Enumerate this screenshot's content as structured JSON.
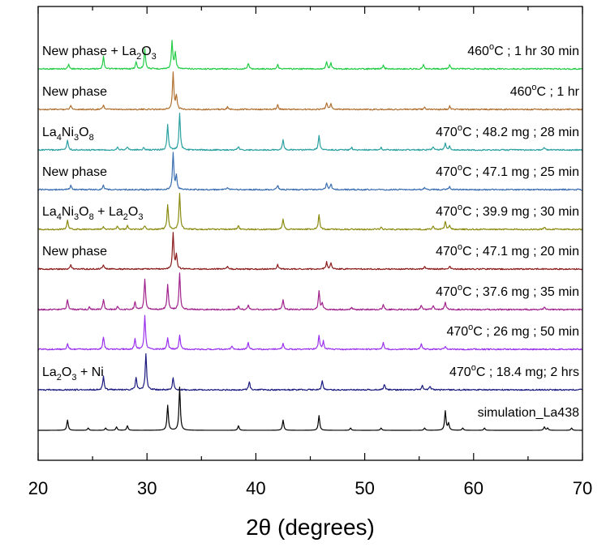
{
  "chart_data": {
    "type": "line",
    "xlabel": "2θ (degrees)",
    "xlim": [
      20,
      70
    ],
    "xticks": [
      "20",
      "30",
      "40",
      "50",
      "60",
      "70"
    ],
    "ylabel": "",
    "y_ticks_shown": false,
    "grid": false,
    "legend": "none",
    "series": [
      {
        "color": "#22cc44",
        "left_label_parts": [
          [
            "New phase + La",
            ""
          ],
          [
            "2",
            "sub"
          ],
          [
            "O",
            ""
          ],
          [
            "3",
            "sub"
          ]
        ],
        "right_label_parts": [
          [
            "460",
            ""
          ],
          [
            "o",
            "sup"
          ],
          [
            "C ; 1 hr 30 min",
            ""
          ]
        ],
        "peaks": [
          [
            22.8,
            0.2
          ],
          [
            26.0,
            0.55
          ],
          [
            29.0,
            0.3
          ],
          [
            29.8,
            0.9
          ],
          [
            32.3,
            1.2
          ],
          [
            32.6,
            0.7
          ],
          [
            39.3,
            0.25
          ],
          [
            42.0,
            0.2
          ],
          [
            46.5,
            0.3
          ],
          [
            46.9,
            0.25
          ],
          [
            51.7,
            0.15
          ],
          [
            55.4,
            0.2
          ],
          [
            57.8,
            0.2
          ]
        ]
      },
      {
        "color": "#b07030",
        "left_label_parts": [
          [
            "New phase",
            ""
          ]
        ],
        "right_label_parts": [
          [
            "460",
            ""
          ],
          [
            "o",
            "sup"
          ],
          [
            "C ; 1 hr",
            ""
          ]
        ],
        "peaks": [
          [
            23.0,
            0.2
          ],
          [
            26.0,
            0.2
          ],
          [
            32.4,
            1.6
          ],
          [
            32.7,
            0.6
          ],
          [
            37.4,
            0.1
          ],
          [
            42.0,
            0.2
          ],
          [
            46.5,
            0.3
          ],
          [
            46.9,
            0.25
          ],
          [
            55.5,
            0.1
          ],
          [
            57.8,
            0.15
          ]
        ]
      },
      {
        "color": "#2aa0a0",
        "left_label_parts": [
          [
            "La",
            ""
          ],
          [
            "4",
            "sub"
          ],
          [
            "Ni",
            ""
          ],
          [
            "3",
            "sub"
          ],
          [
            "O",
            ""
          ],
          [
            "8",
            "sub"
          ]
        ],
        "right_label_parts": [
          [
            "470",
            ""
          ],
          [
            "o",
            "sup"
          ],
          [
            "C ; 48.2 mg ; 28 min",
            ""
          ]
        ],
        "peaks": [
          [
            22.7,
            0.45
          ],
          [
            27.3,
            0.15
          ],
          [
            28.2,
            0.15
          ],
          [
            29.7,
            0.1
          ],
          [
            31.9,
            1.1
          ],
          [
            33.0,
            1.6
          ],
          [
            38.4,
            0.15
          ],
          [
            42.5,
            0.45
          ],
          [
            45.8,
            0.65
          ],
          [
            48.8,
            0.1
          ],
          [
            51.5,
            0.1
          ],
          [
            56.3,
            0.15
          ],
          [
            57.4,
            0.3
          ],
          [
            57.8,
            0.15
          ],
          [
            66.5,
            0.1
          ]
        ]
      },
      {
        "color": "#3a6eb0",
        "left_label_parts": [
          [
            "New phase",
            ""
          ]
        ],
        "right_label_parts": [
          [
            "470",
            ""
          ],
          [
            "o",
            "sup"
          ],
          [
            "C ; 47.1 mg ; 25 min",
            ""
          ]
        ],
        "peaks": [
          [
            23.0,
            0.2
          ],
          [
            26.0,
            0.2
          ],
          [
            32.4,
            1.6
          ],
          [
            32.7,
            0.6
          ],
          [
            37.4,
            0.1
          ],
          [
            42.0,
            0.2
          ],
          [
            46.5,
            0.3
          ],
          [
            46.9,
            0.25
          ],
          [
            55.5,
            0.1
          ],
          [
            57.8,
            0.15
          ]
        ]
      },
      {
        "color": "#8a8a10",
        "left_label_parts": [
          [
            "La",
            ""
          ],
          [
            "4",
            "sub"
          ],
          [
            "Ni",
            ""
          ],
          [
            "3",
            "sub"
          ],
          [
            "O",
            ""
          ],
          [
            "8",
            "sub"
          ],
          [
            " + La",
            ""
          ],
          [
            "2",
            "sub"
          ],
          [
            "O",
            ""
          ],
          [
            "3",
            "sub"
          ]
        ],
        "right_label_parts": [
          [
            "470",
            ""
          ],
          [
            "o",
            "sup"
          ],
          [
            "C ; 39.9 mg ; 30 min",
            ""
          ]
        ],
        "peaks": [
          [
            22.7,
            0.4
          ],
          [
            26.0,
            0.1
          ],
          [
            27.3,
            0.15
          ],
          [
            28.2,
            0.15
          ],
          [
            29.8,
            0.15
          ],
          [
            31.9,
            1.1
          ],
          [
            33.0,
            1.6
          ],
          [
            38.4,
            0.15
          ],
          [
            42.5,
            0.45
          ],
          [
            45.8,
            0.65
          ],
          [
            51.5,
            0.1
          ],
          [
            56.3,
            0.15
          ],
          [
            57.4,
            0.35
          ],
          [
            57.8,
            0.15
          ],
          [
            66.5,
            0.1
          ]
        ]
      },
      {
        "color": "#8b1a1a",
        "left_label_parts": [
          [
            "New phase",
            ""
          ]
        ],
        "right_label_parts": [
          [
            "470",
            ""
          ],
          [
            "o",
            "sup"
          ],
          [
            "C ; 47.1 mg ; 20 min",
            ""
          ]
        ],
        "peaks": [
          [
            23.0,
            0.2
          ],
          [
            26.0,
            0.2
          ],
          [
            32.4,
            1.6
          ],
          [
            32.7,
            0.6
          ],
          [
            37.4,
            0.1
          ],
          [
            42.0,
            0.2
          ],
          [
            46.5,
            0.3
          ],
          [
            46.9,
            0.25
          ],
          [
            55.5,
            0.1
          ],
          [
            57.8,
            0.15
          ]
        ]
      },
      {
        "color": "#a0208c",
        "left_label_parts": [],
        "right_label_parts": [
          [
            "470",
            ""
          ],
          [
            "o",
            "sup"
          ],
          [
            "C ; 37.6 mg ; 35 min",
            ""
          ]
        ],
        "peaks": [
          [
            22.7,
            0.45
          ],
          [
            24.7,
            0.1
          ],
          [
            26.0,
            0.45
          ],
          [
            27.3,
            0.15
          ],
          [
            28.9,
            0.35
          ],
          [
            29.8,
            1.35
          ],
          [
            31.9,
            1.1
          ],
          [
            33.0,
            1.6
          ],
          [
            38.4,
            0.15
          ],
          [
            39.3,
            0.2
          ],
          [
            42.5,
            0.45
          ],
          [
            45.8,
            0.8
          ],
          [
            46.1,
            0.3
          ],
          [
            48.8,
            0.1
          ],
          [
            51.7,
            0.25
          ],
          [
            55.2,
            0.2
          ],
          [
            56.3,
            0.15
          ],
          [
            57.4,
            0.35
          ],
          [
            66.5,
            0.1
          ]
        ]
      },
      {
        "color": "#9a30ee",
        "left_label_parts": [],
        "right_label_parts": [
          [
            "470",
            ""
          ],
          [
            "o",
            "sup"
          ],
          [
            "C ; 26 mg ; 50 min",
            ""
          ]
        ],
        "peaks": [
          [
            22.7,
            0.25
          ],
          [
            26.0,
            0.55
          ],
          [
            28.9,
            0.45
          ],
          [
            29.8,
            1.5
          ],
          [
            31.9,
            0.5
          ],
          [
            33.0,
            0.6
          ],
          [
            37.8,
            0.15
          ],
          [
            39.3,
            0.3
          ],
          [
            42.5,
            0.25
          ],
          [
            45.8,
            0.6
          ],
          [
            46.2,
            0.35
          ],
          [
            51.7,
            0.3
          ],
          [
            55.2,
            0.25
          ],
          [
            57.4,
            0.15
          ]
        ]
      },
      {
        "color": "#1a1a80",
        "left_label_parts": [
          [
            "La",
            ""
          ],
          [
            "2",
            "sub"
          ],
          [
            "O",
            ""
          ],
          [
            "3",
            "sub"
          ],
          [
            " + Ni",
            ""
          ]
        ],
        "right_label_parts": [
          [
            "470",
            ""
          ],
          [
            "o",
            "sup"
          ],
          [
            "C ; 18.4 mg; 2 hrs",
            ""
          ]
        ],
        "peaks": [
          [
            26.0,
            0.6
          ],
          [
            29.0,
            0.55
          ],
          [
            29.9,
            1.6
          ],
          [
            32.4,
            0.55
          ],
          [
            39.4,
            0.35
          ],
          [
            46.1,
            0.4
          ],
          [
            51.8,
            0.25
          ],
          [
            55.3,
            0.2
          ],
          [
            56.0,
            0.15
          ]
        ]
      },
      {
        "color": "#000000",
        "left_label_parts": [],
        "right_label_parts": [
          [
            "simulation_La438",
            ""
          ]
        ],
        "peaks": [
          [
            22.7,
            0.45
          ],
          [
            24.6,
            0.1
          ],
          [
            26.2,
            0.1
          ],
          [
            27.2,
            0.15
          ],
          [
            28.2,
            0.2
          ],
          [
            31.9,
            1.1
          ],
          [
            33.0,
            1.9
          ],
          [
            38.4,
            0.2
          ],
          [
            42.5,
            0.45
          ],
          [
            45.8,
            0.65
          ],
          [
            48.7,
            0.1
          ],
          [
            51.5,
            0.1
          ],
          [
            55.5,
            0.1
          ],
          [
            57.4,
            0.85
          ],
          [
            57.7,
            0.3
          ],
          [
            59.0,
            0.1
          ],
          [
            61.0,
            0.1
          ],
          [
            66.5,
            0.15
          ],
          [
            66.8,
            0.1
          ],
          [
            69.0,
            0.1
          ]
        ]
      }
    ]
  }
}
